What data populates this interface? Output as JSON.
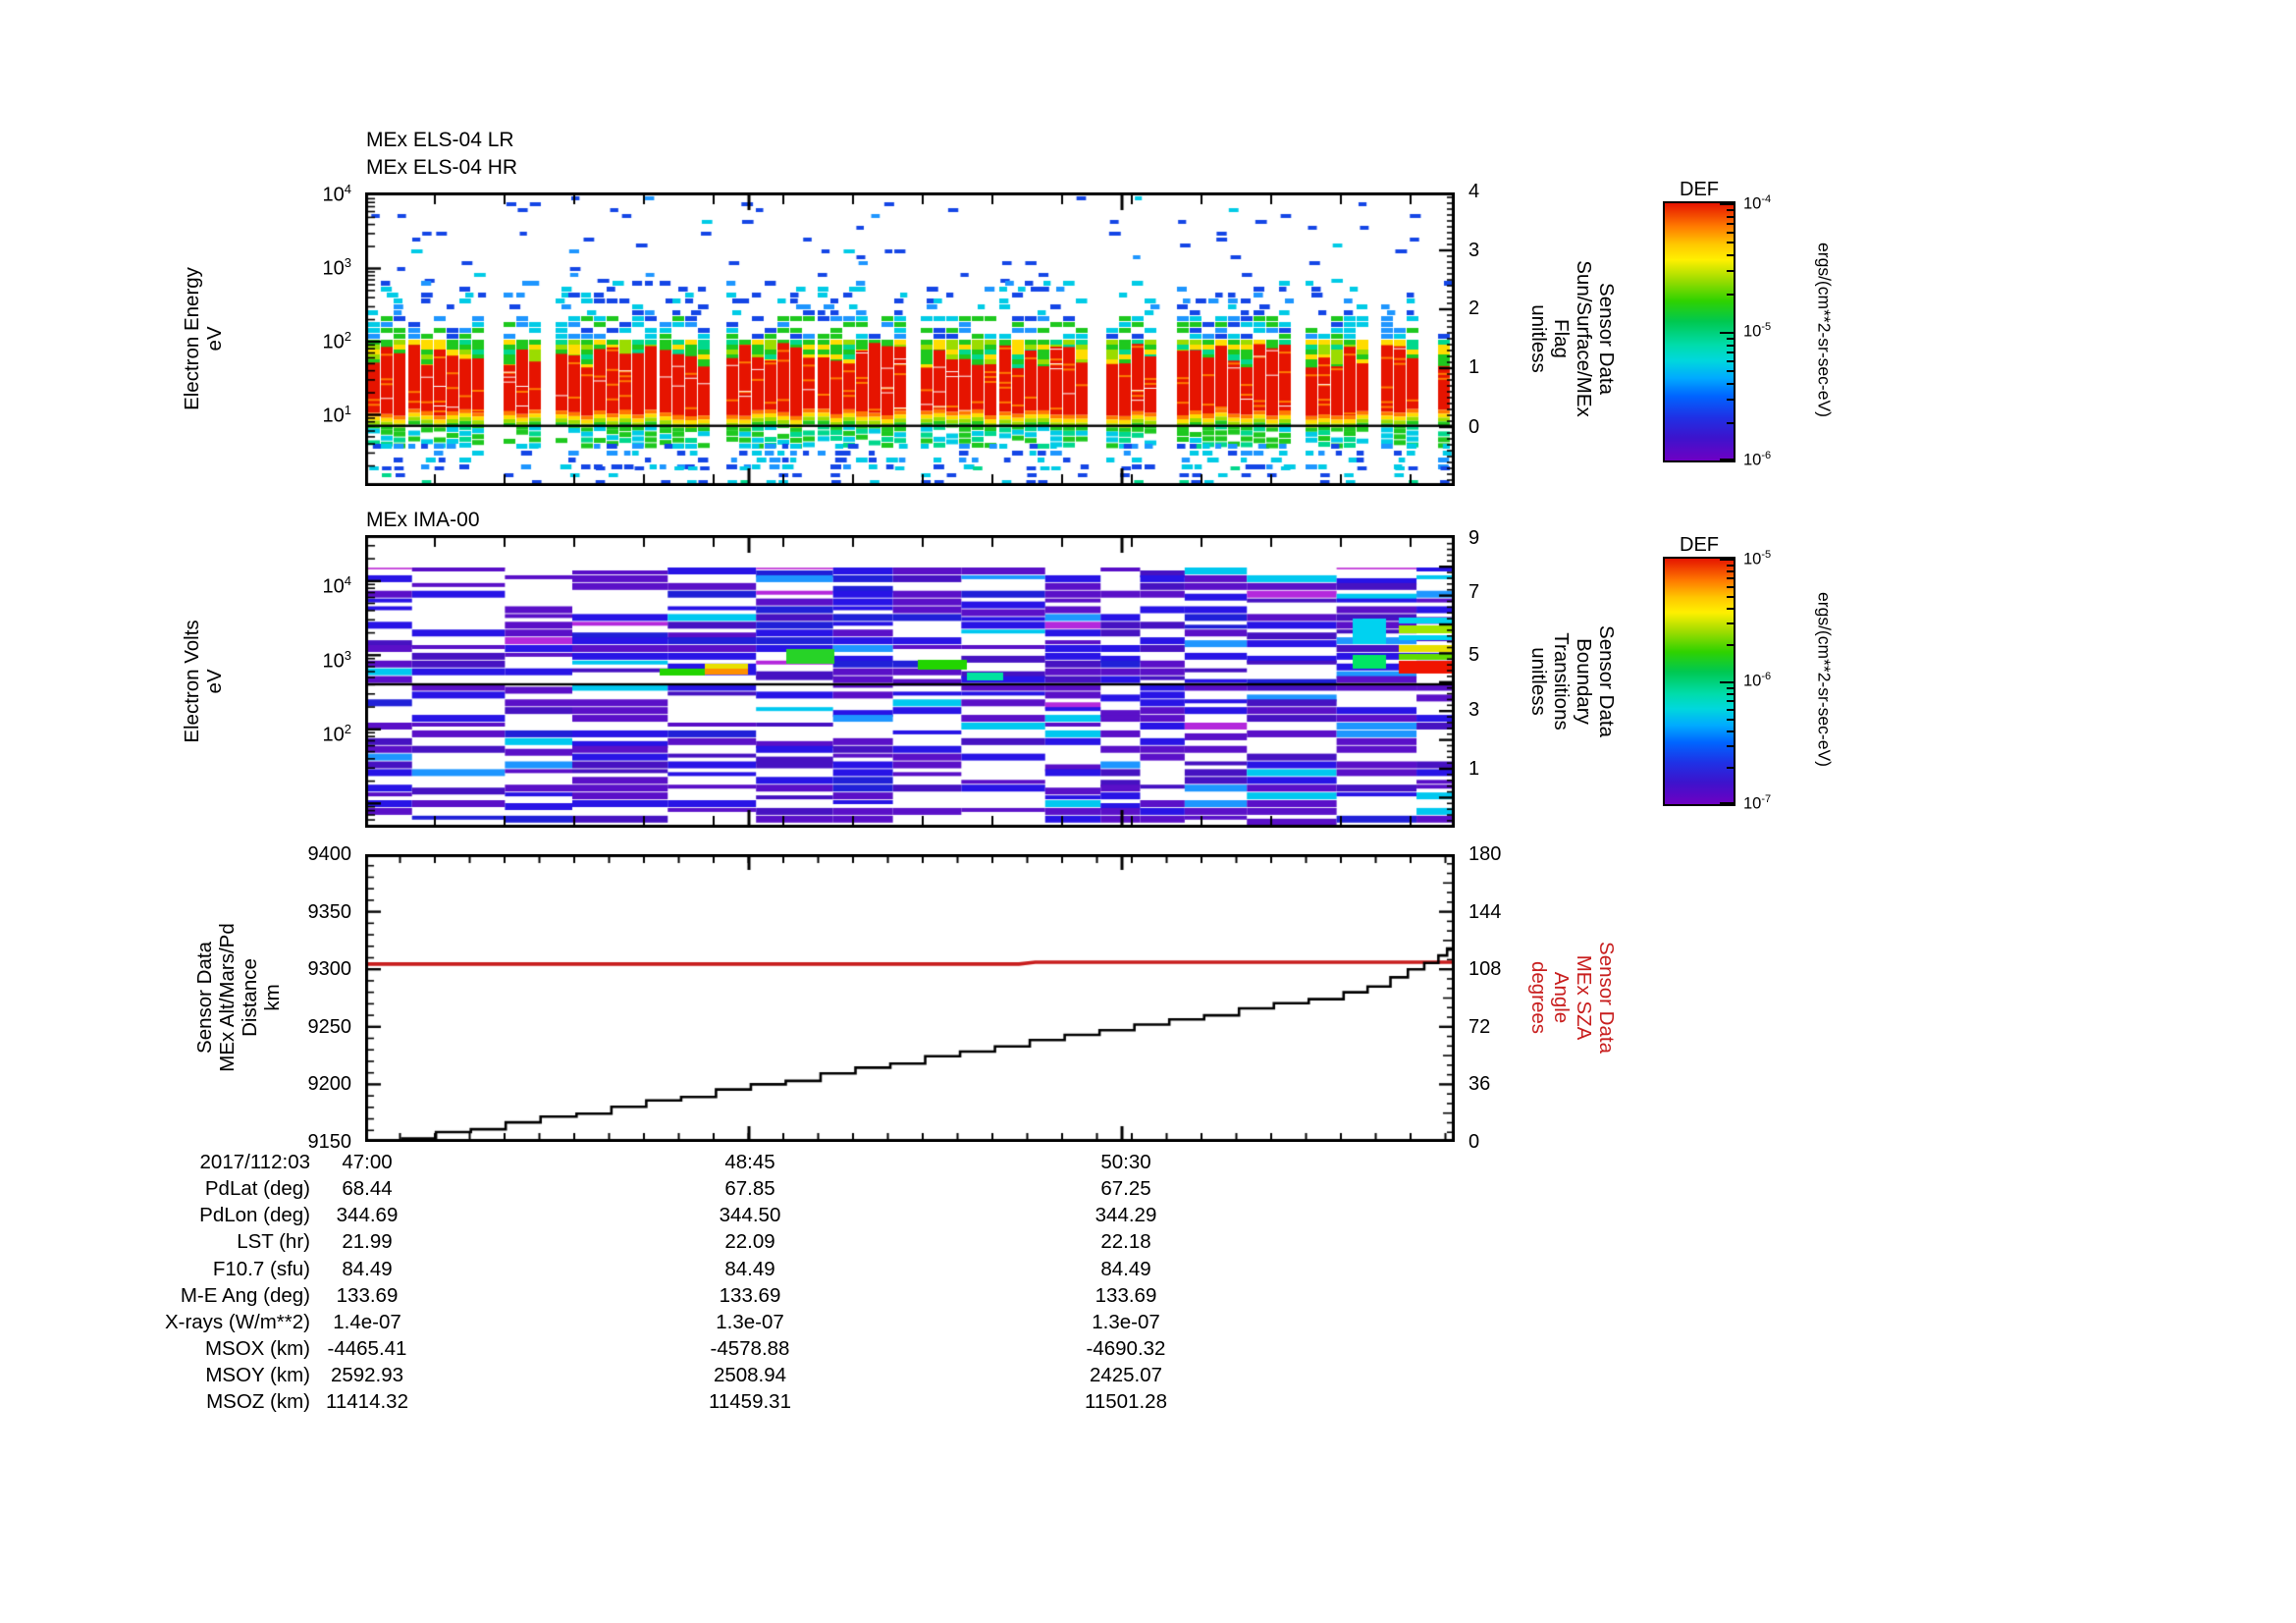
{
  "page": {
    "background": "#ffffff",
    "accent_red": "#c81e1e"
  },
  "panels": {
    "els": {
      "title_lines": [
        "MEx ELS-04 LR",
        "MEx ELS-04 HR"
      ],
      "ylabel_lines": [
        "Electron Energy",
        "eV"
      ],
      "ytick_labels": [
        "10^4",
        "10^3",
        "10^2",
        "10^1"
      ],
      "right_label_lines": [
        "Sensor Data",
        "Sun/Surface/MEx",
        "Flag",
        "unitless"
      ],
      "right_tick_labels": [
        "4",
        "3",
        "2",
        "1",
        "0"
      ]
    },
    "ima": {
      "title": "MEx IMA-00",
      "ylabel_lines": [
        "Electron Volts",
        "eV"
      ],
      "ytick_labels": [
        "10^4",
        "10^3",
        "10^2"
      ],
      "right_label_lines": [
        "Sensor Data",
        "Boundary",
        "Transitions",
        "unitless"
      ],
      "right_tick_labels": [
        "9",
        "7",
        "5",
        "3",
        "1"
      ]
    },
    "alt": {
      "ylabel_lines": [
        "Sensor Data",
        "MEx Alt/Mars/Pd",
        "Distance",
        "km"
      ],
      "ytick_labels": [
        "9400",
        "9350",
        "9300",
        "9250",
        "9200",
        "9150"
      ],
      "right_label_lines": [
        "Sensor Data",
        "MEx SZA",
        "Angle",
        "degrees"
      ],
      "right_tick_labels": [
        "180",
        "144",
        "108",
        "72",
        "36",
        "0"
      ],
      "right_axis_color": "#c81e1e"
    }
  },
  "colorbars": [
    {
      "title": "DEF",
      "tick_labels": [
        "10^-4",
        "10^-5",
        "10^-6"
      ],
      "unit": "ergs/(cm**2-sr-sec-eV)"
    },
    {
      "title": "DEF",
      "tick_labels": [
        "10^-5",
        "10^-6",
        "10^-7"
      ],
      "unit": "ergs/(cm**2-sr-sec-eV)"
    }
  ],
  "table": {
    "rows": [
      {
        "label": "2017/112:03",
        "values": [
          "47:00",
          "48:45",
          "50:30"
        ]
      },
      {
        "label": "PdLat (deg)",
        "values": [
          "68.44",
          "67.85",
          "67.25"
        ]
      },
      {
        "label": "PdLon (deg)",
        "values": [
          "344.69",
          "344.50",
          "344.29"
        ]
      },
      {
        "label": "LST (hr)",
        "values": [
          "21.99",
          "22.09",
          "22.18"
        ]
      },
      {
        "label": "F10.7 (sfu)",
        "values": [
          "84.49",
          "84.49",
          "84.49"
        ]
      },
      {
        "label": "M-E Ang (deg)",
        "values": [
          "133.69",
          "133.69",
          "133.69"
        ]
      },
      {
        "label": "X-rays (W/m**2)",
        "values": [
          "1.4e-07",
          "1.3e-07",
          "1.3e-07"
        ]
      },
      {
        "label": "MSOX (km)",
        "values": [
          "-4465.41",
          "-4578.88",
          "-4690.32"
        ]
      },
      {
        "label": "MSOY (km)",
        "values": [
          "2592.93",
          "2508.94",
          "2425.07"
        ]
      },
      {
        "label": "MSOZ (km)",
        "values": [
          "11414.32",
          "11459.31",
          "11501.28"
        ]
      }
    ]
  },
  "chart_data": [
    {
      "type": "heatmap",
      "title": "MEx ELS-04 LR / MEx ELS-04 HR",
      "ylabel": "Electron Energy (eV)",
      "yscale": "log",
      "yrange": [
        1,
        11000
      ],
      "x_start": "2017/112:03 47:00",
      "xticks": [
        "47:00",
        "48:45",
        "50:30"
      ],
      "colorbar": {
        "title": "DEF",
        "unit": "ergs/(cm**2-sr-sec-eV)",
        "min": 1e-06,
        "max": 0.0001
      },
      "right_overlay": {
        "label": "Sensor Data Sun/Surface/MEx Flag (unitless)",
        "range": [
          -1,
          4
        ],
        "constant_value": 0
      },
      "flux_profile": [
        {
          "energy_eV": "10-60",
          "flux": "~1e-4 saturated red band, quasi-continuous with data gaps"
        },
        {
          "energy_eV": "60-120",
          "flux": "~3e-5 orange/yellow"
        },
        {
          "energy_eV": "120-200",
          "flux": "~1e-5 green/cyan"
        },
        {
          "energy_eV": "200-500",
          "flux": "~2e-6 patchy cyan/blue"
        },
        {
          "energy_eV": "500-10000",
          "flux": "<1e-6 sparse blue speckles"
        }
      ]
    },
    {
      "type": "heatmap",
      "title": "MEx IMA-00",
      "ylabel": "Electron Volts (eV)",
      "yscale": "log",
      "yrange": [
        5,
        40000
      ],
      "xticks": [
        "47:00",
        "48:45",
        "50:30"
      ],
      "colorbar": {
        "title": "DEF",
        "unit": "ergs/(cm**2-sr-sec-eV)",
        "min": 1e-07,
        "max": 1e-05
      },
      "right_overlay": {
        "label": "Sensor Data Boundary Transitions (unitless)",
        "range": [
          -1,
          9
        ],
        "constant_value": 4
      },
      "flux_profile": [
        {
          "note": "Blocky rows of violet/blue (~1e-7..4e-7) across 10-30000 eV with white gaps; cyan rows scattered; enhancements to green/yellow/red (~1e-5) near 400-900 eV in the last third of the interval"
        }
      ]
    },
    {
      "type": "line",
      "xticks": [
        "47:00",
        "48:45",
        "50:30"
      ],
      "x_start_label": "2017/112:03",
      "left_ylabel": "Sensor Data MEx Alt/Mars/Pd Distance (km)",
      "left_ylim": [
        9150,
        9400
      ],
      "right_ylabel": "Sensor Data MEx SZA Angle (degrees)",
      "right_ylim": [
        0,
        180
      ],
      "series": [
        {
          "name": "MEx Alt/Mars/Pd Distance",
          "axis": "left",
          "color": "#000000",
          "style": "steps",
          "points_xfrac_km": [
            [
              0.007,
              9151.5
            ],
            [
              0.034,
              9153
            ],
            [
              0.065,
              9158.5
            ],
            [
              0.097,
              9161
            ],
            [
              0.129,
              9167
            ],
            [
              0.161,
              9172
            ],
            [
              0.194,
              9174.5
            ],
            [
              0.226,
              9180.5
            ],
            [
              0.258,
              9186
            ],
            [
              0.29,
              9189
            ],
            [
              0.322,
              9195.5
            ],
            [
              0.354,
              9200
            ],
            [
              0.386,
              9203
            ],
            [
              0.418,
              9209.5
            ],
            [
              0.45,
              9214.5
            ],
            [
              0.482,
              9218
            ],
            [
              0.514,
              9224.5
            ],
            [
              0.546,
              9228.5
            ],
            [
              0.578,
              9233
            ],
            [
              0.61,
              9238.5
            ],
            [
              0.642,
              9243
            ],
            [
              0.674,
              9247
            ],
            [
              0.706,
              9252
            ],
            [
              0.738,
              9256.5
            ],
            [
              0.77,
              9260
            ],
            [
              0.802,
              9266
            ],
            [
              0.834,
              9270.5
            ],
            [
              0.866,
              9274
            ],
            [
              0.898,
              9280
            ],
            [
              0.92,
              9285
            ],
            [
              0.941,
              9293
            ],
            [
              0.957,
              9300
            ],
            [
              0.972,
              9305.5
            ],
            [
              0.985,
              9312
            ],
            [
              0.993,
              9318
            ],
            [
              1.0,
              9323
            ]
          ]
        },
        {
          "name": "MEx SZA Angle",
          "axis": "right",
          "color": "#c81e1e",
          "style": "line",
          "points_xfrac_deg": [
            [
              0,
              111.3
            ],
            [
              0.6,
              111.3
            ],
            [
              0.615,
              112.4
            ],
            [
              1.0,
              112.4
            ]
          ]
        }
      ]
    }
  ]
}
